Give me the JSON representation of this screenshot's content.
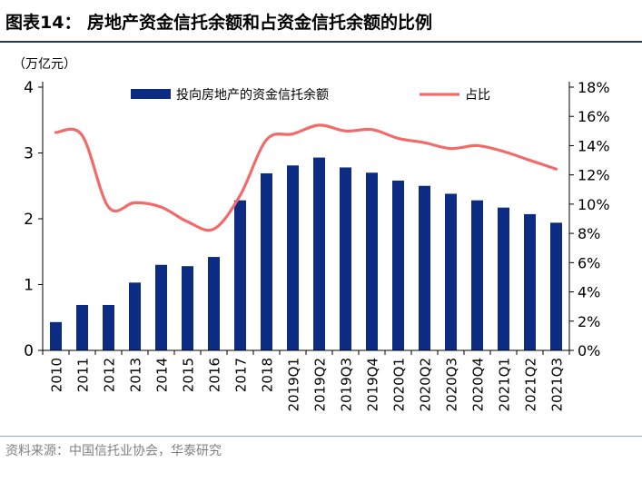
{
  "figure": {
    "title": "图表14：  房地产资金信托余额和占资金信托余额的比例",
    "unit": "（万亿元）",
    "source": "资料来源：中国信托业协会，华泰研究"
  },
  "chart_data": {
    "type": "bar",
    "categories": [
      "2010",
      "2011",
      "2012",
      "2013",
      "2014",
      "2015",
      "2016",
      "2017",
      "2018",
      "2019Q1",
      "2019Q2",
      "2019Q3",
      "2019Q4",
      "2020Q1",
      "2020Q2",
      "2020Q3",
      "2020Q4",
      "2021Q1",
      "2021Q2",
      "2021Q3"
    ],
    "series": [
      {
        "name": "投向房地产的资金信托余额",
        "type": "bar",
        "axis": "left",
        "color": "#0c2c84",
        "values": [
          0.43,
          0.69,
          0.69,
          1.03,
          1.3,
          1.28,
          1.42,
          2.28,
          2.69,
          2.81,
          2.93,
          2.78,
          2.7,
          2.58,
          2.5,
          2.38,
          2.28,
          2.17,
          2.07,
          1.94
        ]
      },
      {
        "name": "占比",
        "type": "line",
        "axis": "right",
        "color": "#f26b6b",
        "values": [
          14.9,
          14.7,
          9.8,
          10.1,
          9.8,
          8.8,
          8.3,
          10.6,
          14.4,
          14.8,
          15.4,
          15.0,
          15.1,
          14.5,
          14.2,
          13.8,
          14.0,
          13.6,
          13.0,
          12.4
        ]
      }
    ],
    "yleft": {
      "ylim": [
        0,
        4
      ],
      "ticks": [
        "0",
        "1",
        "2",
        "3",
        "4"
      ]
    },
    "yright": {
      "ylim": [
        0,
        18
      ],
      "ticks": [
        "0%",
        "2%",
        "4%",
        "6%",
        "8%",
        "10%",
        "12%",
        "14%",
        "16%",
        "18%"
      ]
    },
    "legend": "top-center",
    "grid": false
  }
}
